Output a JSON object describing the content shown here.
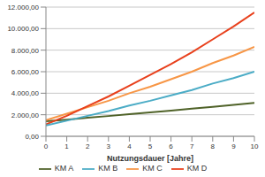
{
  "chart_data": {
    "type": "line",
    "x_label": "Nutzungsdauer [Jahre]",
    "x": [
      0,
      1,
      2,
      3,
      4,
      5,
      6,
      7,
      8,
      9,
      10
    ],
    "xlim": [
      0,
      10
    ],
    "xticks": [
      0,
      1,
      2,
      3,
      4,
      5,
      6,
      7,
      8,
      9,
      10
    ],
    "ylim": [
      0,
      12000
    ],
    "yticks": [
      {
        "value": 0,
        "label": "0,00"
      },
      {
        "value": 2000,
        "label": "2.000,00"
      },
      {
        "value": 4000,
        "label": "4.000,00"
      },
      {
        "value": 6000,
        "label": "6.000,00"
      },
      {
        "value": 8000,
        "label": "8.000,00"
      },
      {
        "value": 10000,
        "label": "10.000,00"
      },
      {
        "value": 12000,
        "label": "12.000,00"
      }
    ],
    "grid": true,
    "legend": "bottom",
    "series": [
      {
        "name": "KM A",
        "color": "#4f6228",
        "values": [
          1400,
          1550,
          1720,
          1880,
          2050,
          2220,
          2390,
          2570,
          2740,
          2920,
          3100
        ]
      },
      {
        "name": "KM C",
        "color": "#f79646",
        "values": [
          1500,
          2100,
          2700,
          3300,
          4000,
          4600,
          5300,
          6000,
          6800,
          7500,
          8300
        ]
      },
      {
        "name": "KM D",
        "color": "#e8401c",
        "values": [
          1100,
          1900,
          2800,
          3700,
          4700,
          5700,
          6700,
          7800,
          9000,
          10200,
          11500
        ]
      },
      {
        "name": "KM B",
        "color": "#4bacc6",
        "values": [
          1000,
          1450,
          1900,
          2350,
          2850,
          3300,
          3800,
          4300,
          4900,
          5400,
          6000
        ]
      }
    ]
  }
}
